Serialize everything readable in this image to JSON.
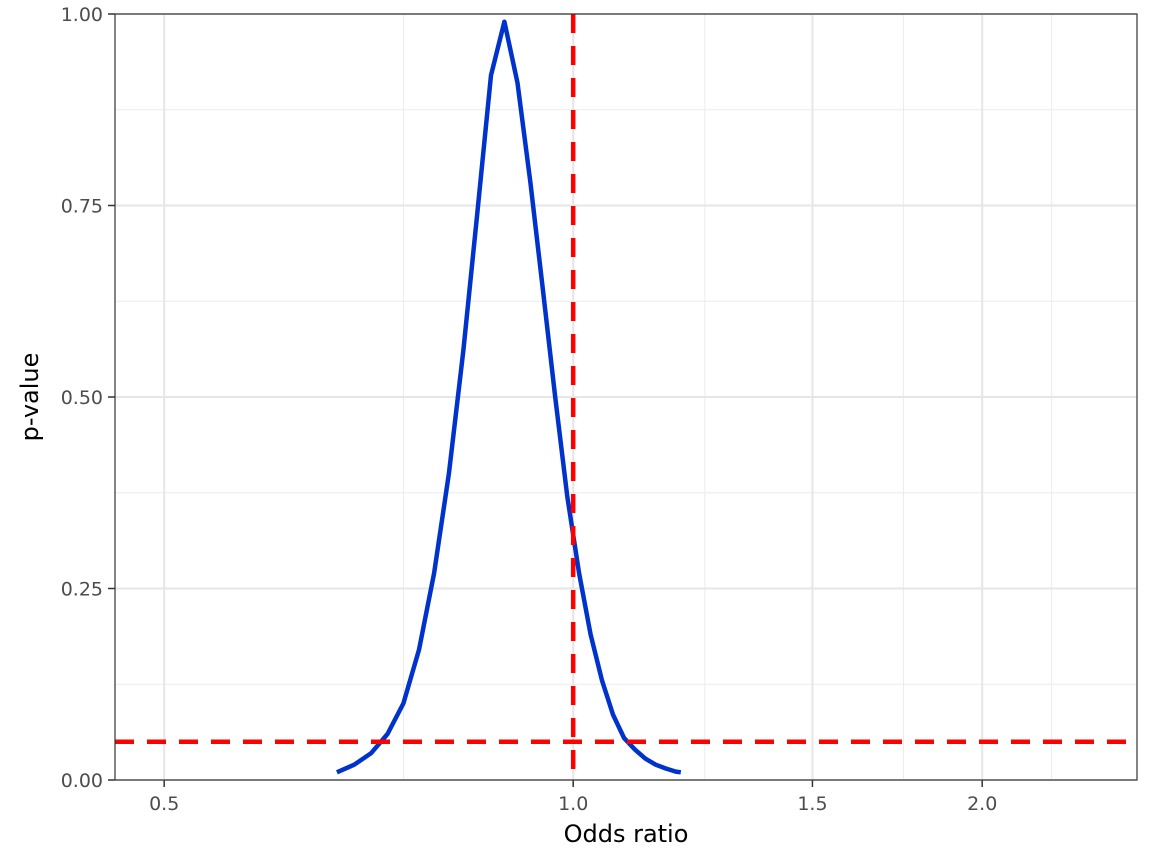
{
  "chart_data": {
    "type": "line",
    "title": "",
    "xlabel": "Odds ratio",
    "ylabel": "p-value",
    "x_scale": "log",
    "xlim": [
      0.46,
      2.6
    ],
    "ylim": [
      0,
      1
    ],
    "x_ticks": [
      0.5,
      1.0,
      1.5,
      2.0
    ],
    "x_tick_labels": [
      "0.5",
      "1.0",
      "1.5",
      "2.0"
    ],
    "y_ticks": [
      0,
      0.25,
      0.5,
      0.75,
      1.0
    ],
    "y_tick_labels": [
      "0.00",
      "0.25",
      "0.50",
      "0.75",
      "1.00"
    ],
    "grid": true,
    "legend": "none",
    "series": [
      {
        "color": "#0033cc",
        "x": [
          0.67,
          0.69,
          0.71,
          0.73,
          0.75,
          0.77,
          0.79,
          0.81,
          0.83,
          0.85,
          0.87,
          0.89,
          0.91,
          0.93,
          0.95,
          0.97,
          0.99,
          1.01,
          1.03,
          1.05,
          1.07,
          1.09,
          1.11,
          1.13,
          1.15,
          1.17,
          1.19,
          1.2
        ],
        "y": [
          0.01,
          0.02,
          0.035,
          0.06,
          0.1,
          0.17,
          0.27,
          0.4,
          0.56,
          0.74,
          0.92,
          0.99,
          0.91,
          0.78,
          0.64,
          0.5,
          0.37,
          0.27,
          0.19,
          0.13,
          0.085,
          0.055,
          0.04,
          0.028,
          0.02,
          0.015,
          0.011,
          0.01
        ]
      }
    ],
    "reference_lines": [
      {
        "orientation": "vertical",
        "value": 1.0,
        "color": "#ff0000",
        "style": "dashed"
      },
      {
        "orientation": "horizontal",
        "value": 0.05,
        "color": "#ff0000",
        "style": "dashed"
      }
    ]
  }
}
